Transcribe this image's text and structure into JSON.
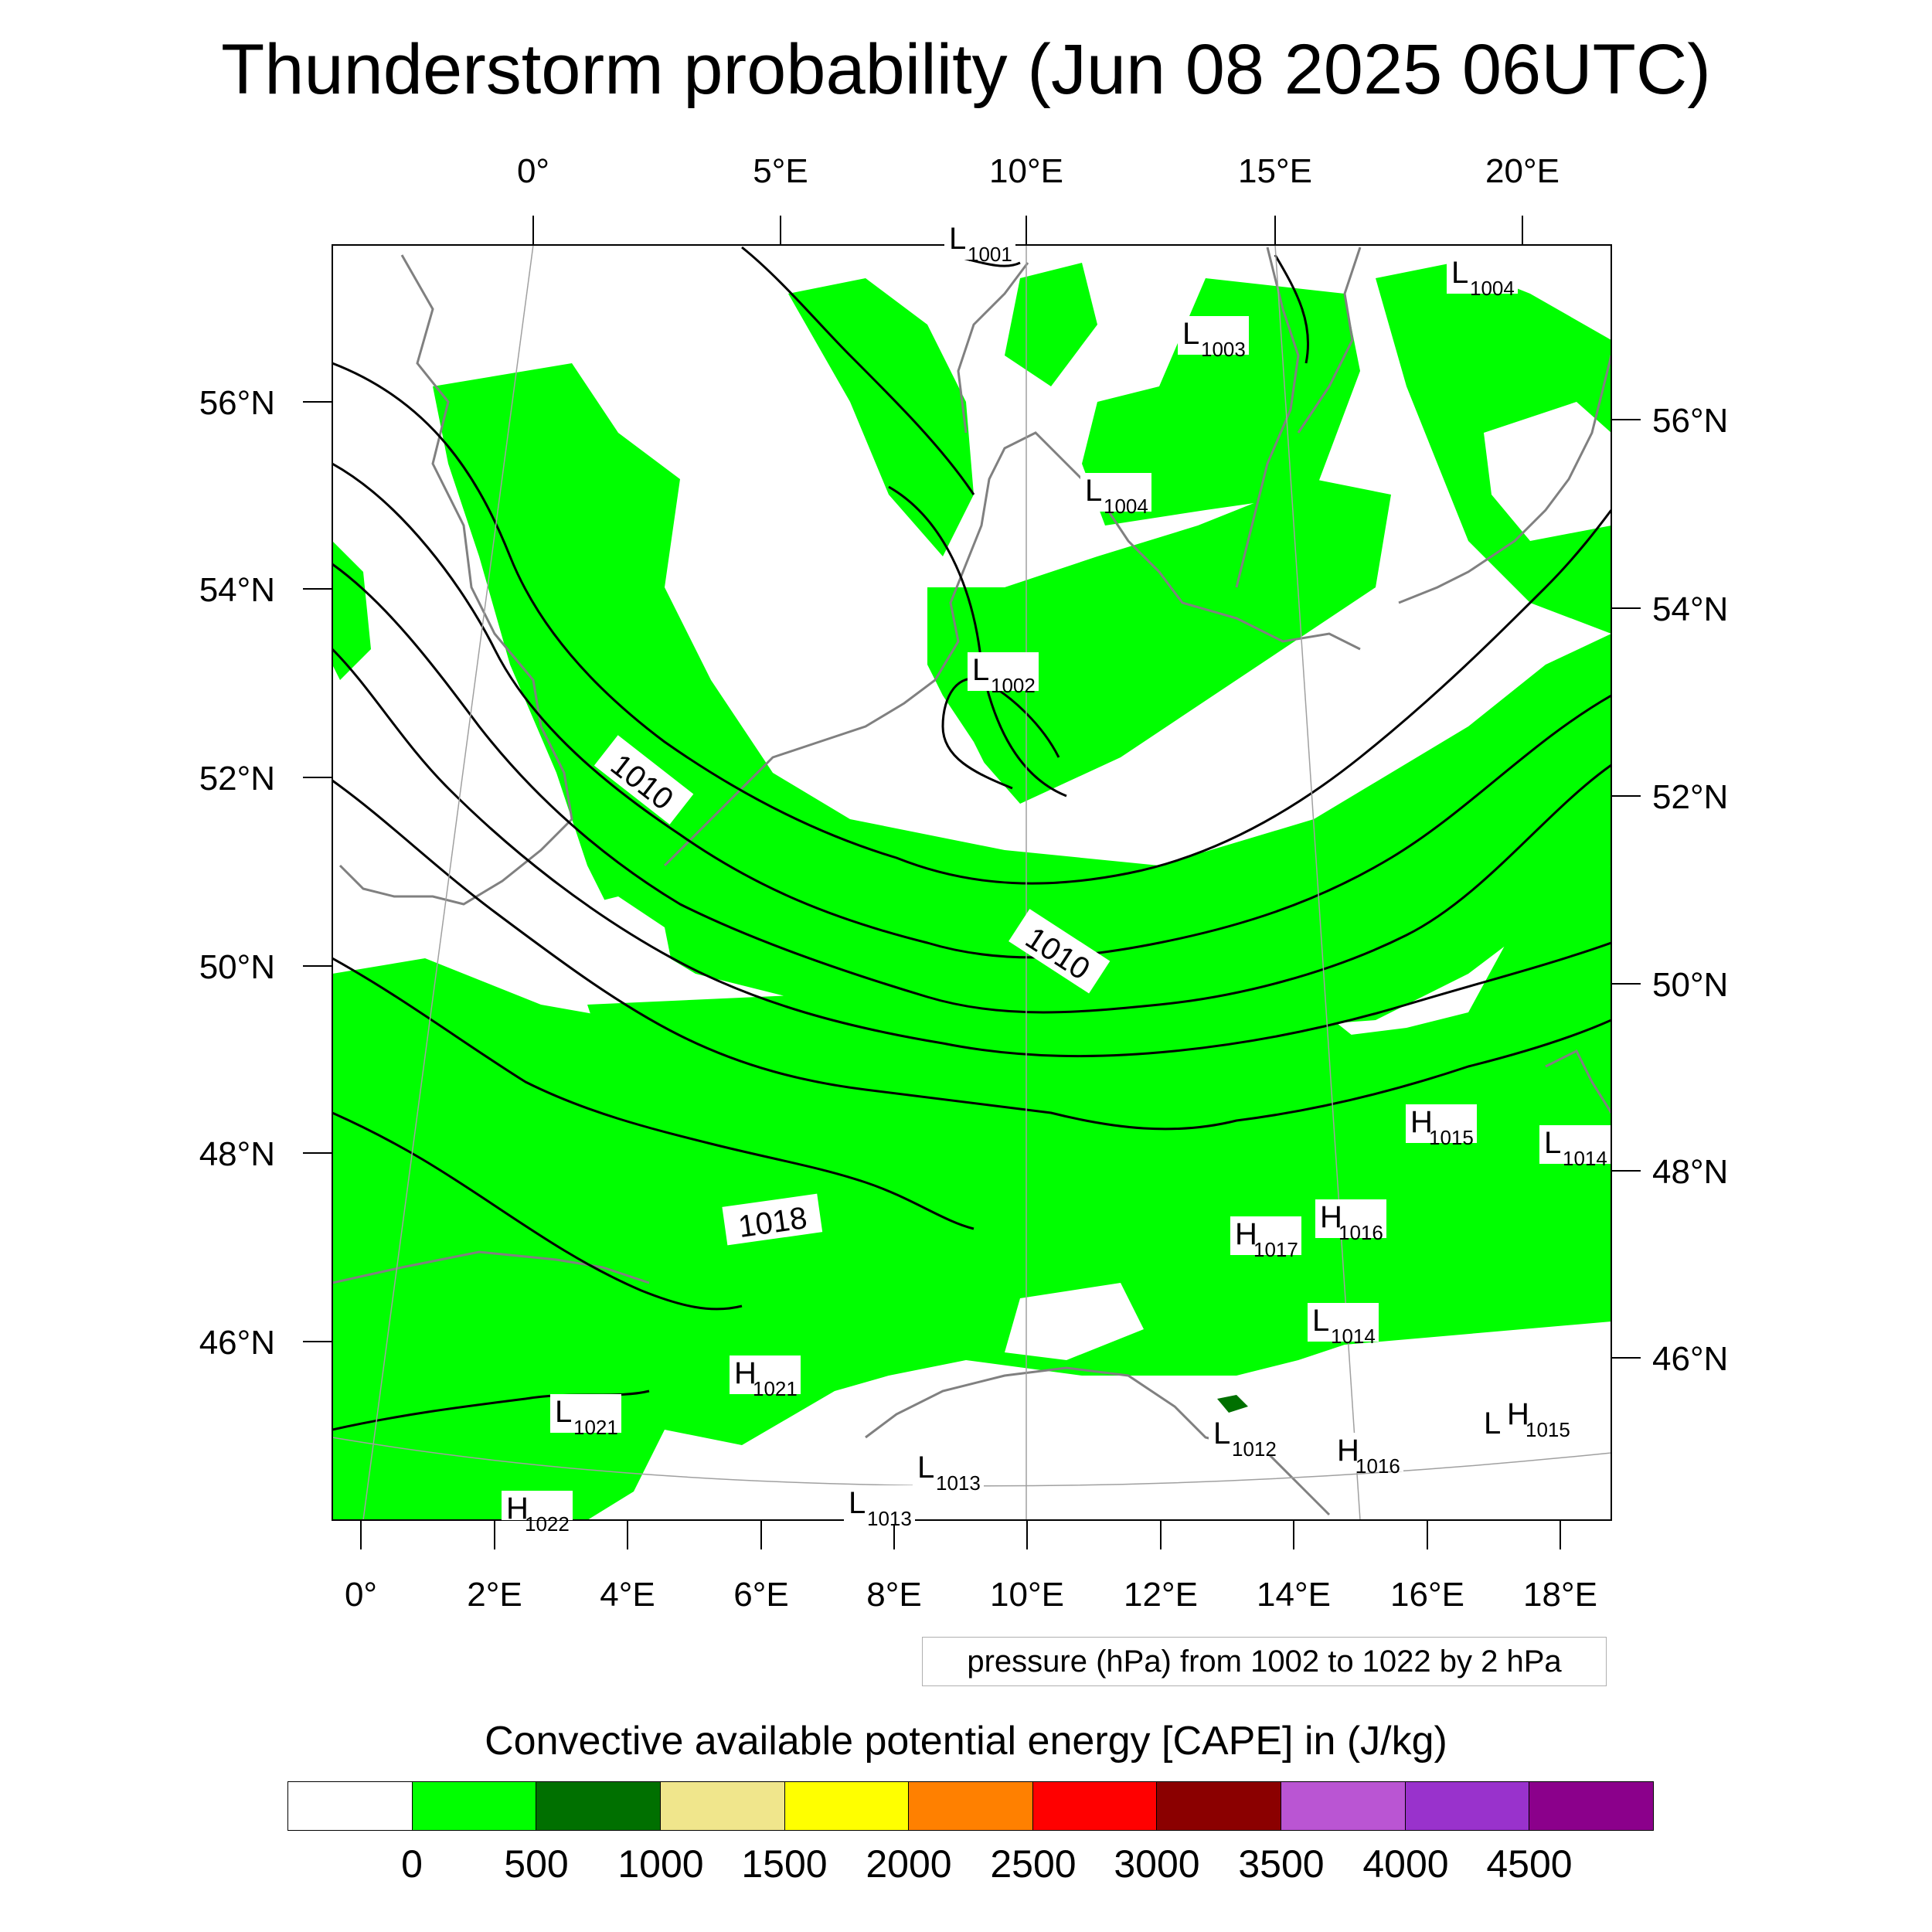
{
  "title": "Thunderstorm probability (Jun 08 2025 06UTC)",
  "map": {
    "bottom_lon_labels": [
      "0°",
      "2°E",
      "4°E",
      "6°E",
      "8°E",
      "10°E",
      "12°E",
      "14°E",
      "16°E",
      "18°E"
    ],
    "top_lon_labels": [
      "0°",
      "5°E",
      "10°E",
      "15°E",
      "20°E"
    ],
    "left_lat_labels": [
      "56°N",
      "54°N",
      "52°N",
      "50°N",
      "48°N",
      "46°N"
    ],
    "right_lat_labels": [
      "56°N",
      "54°N",
      "52°N",
      "50°N",
      "48°N",
      "46°N"
    ],
    "contour_labels": [
      "1010",
      "1010",
      "1018"
    ],
    "pressure_centers": [
      {
        "letter": "L",
        "value": "1001"
      },
      {
        "letter": "L",
        "value": "1004"
      },
      {
        "letter": "L",
        "value": "1003"
      },
      {
        "letter": "L",
        "value": "1004"
      },
      {
        "letter": "L",
        "value": "1002"
      },
      {
        "letter": "H",
        "value": "1015"
      },
      {
        "letter": "L",
        "value": "1014"
      },
      {
        "letter": "H",
        "value": "1017"
      },
      {
        "letter": "H",
        "value": "1016"
      },
      {
        "letter": "L",
        "value": "1014"
      },
      {
        "letter": "H",
        "value": "1021"
      },
      {
        "letter": "L",
        "value": "1021"
      },
      {
        "letter": "L",
        "value": "1012"
      },
      {
        "letter": "H",
        "value": "1016"
      },
      {
        "letter": "L",
        "value": ""
      },
      {
        "letter": "H",
        "value": "1015"
      },
      {
        "letter": "L",
        "value": "1013"
      },
      {
        "letter": "L",
        "value": "1013"
      },
      {
        "letter": "H",
        "value": "1022"
      }
    ],
    "colors": {
      "cape_low": "#00ff00",
      "cape_dark": "#007000",
      "contour": "#000000",
      "coastline": "#808080"
    }
  },
  "pressure_note": "pressure (hPa) from 1002 to 1022 by 2 hPa",
  "colorbar": {
    "title": "Convective available potential energy [CAPE] in (J/kg)",
    "colors": [
      "#ffffff",
      "#00ff00",
      "#007000",
      "#f0e68c",
      "#ffff00",
      "#ff8000",
      "#ff0000",
      "#8b0000",
      "#ba55d3",
      "#9932cc",
      "#8b008b"
    ],
    "labels": [
      "0",
      "500",
      "1000",
      "1500",
      "2000",
      "2500",
      "3000",
      "3500",
      "4000",
      "4500"
    ]
  }
}
